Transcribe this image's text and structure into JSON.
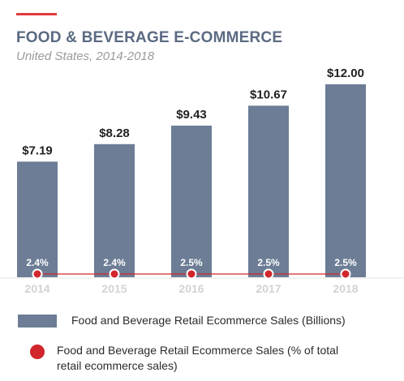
{
  "header": {
    "title": "FOOD & BEVERAGE E-COMMERCE",
    "subtitle": "United States, 2014-2018"
  },
  "colors": {
    "accent": "#e03a3e",
    "title": "#5b6a82",
    "subtitle": "#9a9a9a",
    "bar": "#6c7d95",
    "dot": "#d0262c",
    "line": "#d0262c",
    "value_label": "#222222",
    "axis_label": "#d3d3d3",
    "baseline": "#e6e6e6"
  },
  "chart_data": {
    "type": "bar",
    "categories": [
      "2014",
      "2015",
      "2016",
      "2017",
      "2018"
    ],
    "series": [
      {
        "name": "Food and Beverage Retail Ecommerce Sales (Billions)",
        "type": "bar",
        "values": [
          7.19,
          8.28,
          9.43,
          10.67,
          12.0
        ],
        "labels": [
          "$7.19",
          "$8.28",
          "$9.43",
          "$10.67",
          "$12.00"
        ]
      },
      {
        "name": "Food and Beverage Retail Ecommerce Sales (% of total retail ecommerce sales)",
        "type": "line",
        "values": [
          2.4,
          2.4,
          2.5,
          2.5,
          2.5
        ],
        "labels": [
          "2.4%",
          "2.4%",
          "2.5%",
          "2.5%",
          "2.5%"
        ]
      }
    ],
    "ylim": [
      0,
      12
    ],
    "grid": false,
    "legend": "bottom"
  }
}
